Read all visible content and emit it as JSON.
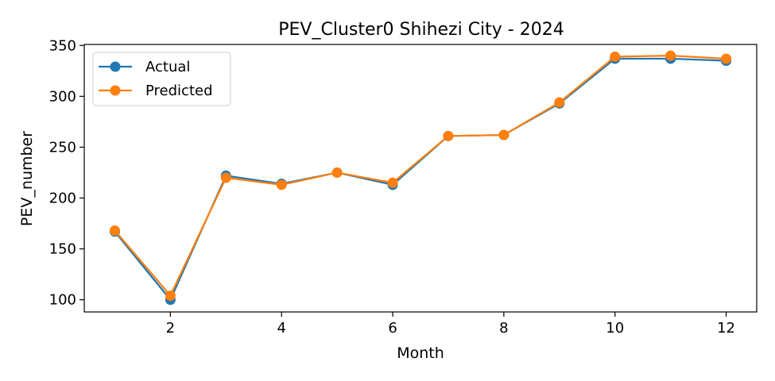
{
  "chart_data": {
    "type": "line",
    "title": "PEV_Cluster0 Shihezi City - 2024",
    "xlabel": "Month",
    "ylabel": "PEV_number",
    "x": [
      1,
      2,
      3,
      4,
      5,
      6,
      7,
      8,
      9,
      10,
      11,
      12
    ],
    "xlim": [
      0.45,
      12.55
    ],
    "ylim": [
      88,
      351
    ],
    "xticks": [
      2,
      4,
      6,
      8,
      10,
      12
    ],
    "yticks": [
      100,
      150,
      200,
      250,
      300,
      350
    ],
    "grid": false,
    "legend_position": "top-left",
    "series": [
      {
        "name": "Actual",
        "color": "#1f77b4",
        "marker": "circle",
        "values": [
          167,
          100,
          222,
          214,
          225,
          213,
          261,
          262,
          293,
          337,
          337,
          335
        ]
      },
      {
        "name": "Predicted",
        "color": "#ff7f0e",
        "marker": "circle",
        "values": [
          168,
          104,
          220,
          213,
          225,
          215,
          261,
          262,
          294,
          339,
          340,
          337
        ]
      }
    ]
  }
}
